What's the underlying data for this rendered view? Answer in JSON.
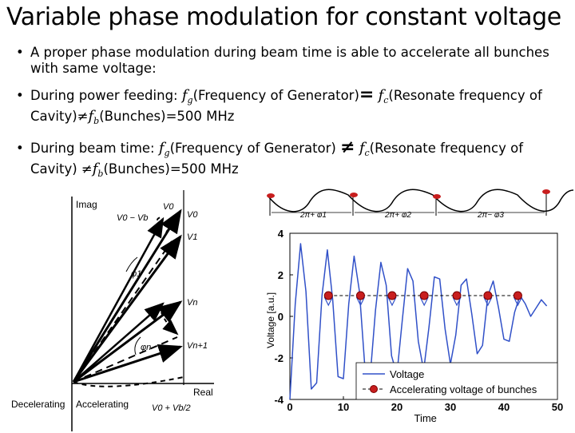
{
  "title": "Variable phase modulation for constant voltage",
  "bullets": {
    "b1_text": "A proper phase modulation during beam time is able to accelerate all bunches with same voltage:",
    "b2_a": "During power feeding:",
    "b2_b": "(Frequency of Generator)",
    "b2_c": "(Resonate frequency of Cavity)",
    "b2_d": "(Bunches)=500 MHz",
    "b3_a": "During beam time:",
    "b3_b": "(Frequency of Generator)",
    "b3_c": "(Resonate frequency of Cavity)",
    "b3_d": "(Bunches)=500 MHz",
    "bullet_char": "•",
    "eq_sym": "=",
    "neq_sym": "≠",
    "f": "f",
    "g": "g",
    "c": "c",
    "b": "b"
  },
  "phasor": {
    "imag_label": "Imag",
    "real_label": "Real",
    "decel_label": "Decelerating",
    "accel_label": "Accelerating",
    "v0_vb_label": "V0 − Vb",
    "v0_label": "V0",
    "v0_top": "V0",
    "v1_label": "V1",
    "phi1_label": "φ1",
    "vn_label": "Vn",
    "phin_label": "φn",
    "vn1_label": "Vn+1",
    "vbottom_label": "V0 + Vb/2"
  },
  "wave_strip": {
    "labels": [
      "2π+ φ1",
      "2π+ φ2",
      "2π− φ3"
    ]
  },
  "chart_data": {
    "type": "line",
    "title": "",
    "xlabel": "Time",
    "ylabel": "Voltage [a.u.]",
    "xlim": [
      0,
      50
    ],
    "ylim": [
      -4,
      4
    ],
    "xticks": [
      "0",
      "10",
      "20",
      "30",
      "40",
      "50"
    ],
    "yticks": [
      "4",
      "2",
      "0",
      "-2",
      "-4"
    ],
    "series": [
      {
        "name": "Voltage",
        "color": "#3050c8",
        "x": [
          0,
          1,
          2,
          3,
          4,
          5,
          6,
          7,
          8,
          9,
          10,
          11,
          12,
          13,
          14,
          15,
          16,
          17,
          18,
          19,
          20,
          21,
          22,
          23,
          24,
          25,
          26,
          27,
          28,
          29,
          30,
          31,
          32,
          33,
          34,
          35,
          36,
          37,
          38,
          39,
          40,
          41,
          42,
          43,
          44,
          45,
          46,
          47,
          48
        ],
        "y": [
          -4,
          0.6,
          3.5,
          1.2,
          -3.5,
          -3.2,
          1.0,
          3.2,
          0.8,
          -2.9,
          -3.0,
          0.6,
          2.9,
          1.2,
          -2.4,
          -2.9,
          0.3,
          2.6,
          1.5,
          -1.9,
          -2.8,
          -0.2,
          2.3,
          1.7,
          -1.2,
          -2.6,
          -0.5,
          1.9,
          1.8,
          -0.6,
          -2.3,
          -0.9,
          1.5,
          1.8,
          0.1,
          -1.8,
          -1.4,
          1.0,
          1.7,
          0.4,
          -1.1,
          -1.2,
          0.2,
          1.0,
          0.6,
          0.0,
          0.4,
          0.8,
          0.5
        ]
      },
      {
        "name": "Accelerating voltage of bunches",
        "color": "#c81e1e",
        "x": [
          7.2,
          13.2,
          19.1,
          25.1,
          31.2,
          37.0,
          42.6
        ],
        "y": [
          1.0,
          1.0,
          1.0,
          1.0,
          1.0,
          1.0,
          1.0
        ]
      }
    ],
    "legend": [
      "Voltage",
      "Accelerating voltage of bunches"
    ]
  }
}
